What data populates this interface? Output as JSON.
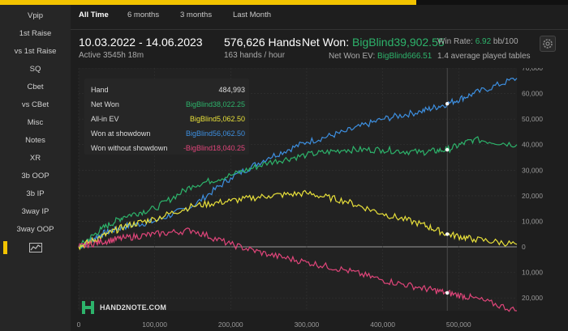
{
  "sidebar": {
    "items": [
      "Vpip",
      "1st Raise",
      "vs 1st Raise",
      "SQ",
      "Cbet",
      "vs CBet",
      "Misc",
      "Notes",
      "XR",
      "3b OOP",
      "3b IP",
      "3way IP",
      "3way OOP"
    ],
    "active_icon": "line-chart-icon"
  },
  "tabs": [
    "All Time",
    "6 months",
    "3 months",
    "Last Month"
  ],
  "summary": {
    "date_range": "10.03.2022 - 14.06.2023",
    "active": "Active 3545h 18m",
    "hands": "576,626 Hands",
    "hands_rate": "163 hands / hour",
    "net_won_label": "Net Won: ",
    "net_won_value": "BigBlind39,902.55",
    "win_rate_label": "Win Rate: ",
    "win_rate_value": "6.92",
    "win_rate_unit": " bb/100",
    "nw_ev_label": "Net Won  EV: ",
    "nw_ev_value": "BigBlind666.51",
    "avg_tables": "1.4 average played tables"
  },
  "tooltip": {
    "rows": [
      {
        "label": "Hand",
        "value": "484,993",
        "color": "#dddddd"
      },
      {
        "label": "Net Won",
        "value": "BigBlind38,022.25",
        "color": "#2db36b"
      },
      {
        "label": "All-in EV",
        "value": "BigBlind5,062.50",
        "color": "#e8e03a"
      },
      {
        "label": "Won at showdown",
        "value": "BigBlind56,062.50",
        "color": "#3d8fe0"
      },
      {
        "label": "Won without showdown",
        "value": "-BigBlind18,040.25",
        "color": "#e0457a"
      }
    ]
  },
  "brand": "HAND2NOTE.COM",
  "chart_data": {
    "type": "line",
    "xlabel": "",
    "ylabel": "",
    "xlim": [
      0,
      576626
    ],
    "ylim": [
      -25000,
      70000
    ],
    "x_ticks": [
      0,
      100000,
      200000,
      300000,
      400000,
      500000
    ],
    "x_tick_labels": [
      "0",
      "100,000",
      "200,000",
      "300,000",
      "400,000",
      "500,000"
    ],
    "y_ticks": [
      70000,
      60000,
      50000,
      40000,
      30000,
      20000,
      10000,
      0,
      -10000,
      -20000
    ],
    "y_tick_labels": [
      "70,000",
      "60,000",
      "50,000",
      "40,000",
      "30,000",
      "20,000",
      "10,000",
      "0",
      "10,000",
      "20,000"
    ],
    "series": [
      {
        "name": "Won at showdown",
        "color": "#3d8fe0",
        "x": [
          0,
          30000,
          60000,
          100000,
          150000,
          200000,
          250000,
          300000,
          350000,
          400000,
          450000,
          484993,
          520000,
          576626
        ],
        "values": [
          0,
          5000,
          8000,
          10000,
          16000,
          27000,
          35000,
          41000,
          45000,
          50000,
          53000,
          56000,
          60000,
          66000
        ]
      },
      {
        "name": "Net Won",
        "color": "#2db36b",
        "x": [
          0,
          30000,
          60000,
          100000,
          150000,
          200000,
          250000,
          300000,
          350000,
          400000,
          450000,
          484993,
          520000,
          576626
        ],
        "values": [
          0,
          7000,
          12000,
          15000,
          24000,
          28000,
          33000,
          36000,
          38000,
          38000,
          37000,
          38000,
          42000,
          40000
        ]
      },
      {
        "name": "All-in EV",
        "color": "#e8e03a",
        "x": [
          0,
          30000,
          60000,
          100000,
          150000,
          200000,
          250000,
          300000,
          350000,
          400000,
          450000,
          484993,
          520000,
          576626
        ],
        "values": [
          0,
          4000,
          8000,
          11000,
          16000,
          18000,
          20000,
          21000,
          18000,
          13000,
          9000,
          5000,
          3000,
          1000
        ]
      },
      {
        "name": "Won without showdown",
        "color": "#e0457a",
        "x": [
          0,
          30000,
          60000,
          100000,
          150000,
          200000,
          250000,
          300000,
          350000,
          400000,
          450000,
          484993,
          520000,
          576626
        ],
        "values": [
          0,
          2000,
          3500,
          5000,
          6500,
          1000,
          -3000,
          -6000,
          -9000,
          -13000,
          -16000,
          -18000,
          -20000,
          -25000
        ]
      }
    ],
    "marker_x": 484993,
    "grid": true,
    "legend": "tooltip top-left"
  }
}
